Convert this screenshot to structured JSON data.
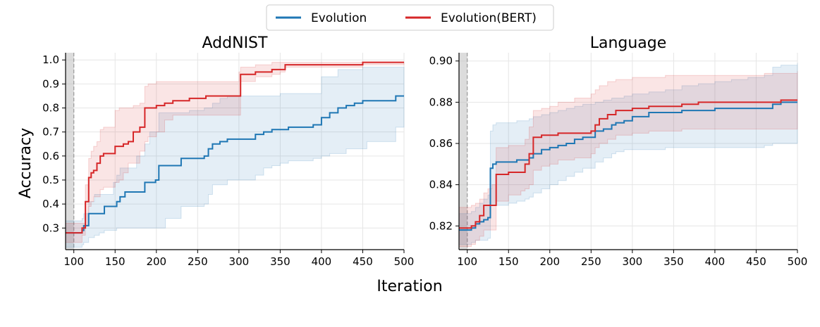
{
  "legend": [
    {
      "name": "Evolution",
      "color": "#1f77b4"
    },
    {
      "name": "Evolution(BERT)",
      "color": "#d62728"
    }
  ],
  "xlabel": "Iteration",
  "ylabel": "Accuracy",
  "chart_data": [
    {
      "type": "line",
      "title": "AddNIST",
      "xlim": [
        90,
        500
      ],
      "ylim": [
        0.21,
        1.03
      ],
      "xticks": [
        100,
        150,
        200,
        250,
        300,
        350,
        400,
        450,
        500
      ],
      "yticks": [
        0.3,
        0.4,
        0.5,
        0.6,
        0.7,
        0.8,
        0.9,
        1.0
      ],
      "ytick_labels": [
        "0.3",
        "0.4",
        "0.5",
        "0.6",
        "0.7",
        "0.8",
        "0.9",
        "1.0"
      ],
      "warmup_end": 100,
      "series": [
        {
          "name": "Evolution",
          "color": "#1f77b4",
          "x": [
            90,
            110,
            112,
            118,
            125,
            131,
            137,
            148,
            152,
            156,
            162,
            176,
            186,
            192,
            199,
            203,
            211,
            220,
            230,
            240,
            250,
            258,
            263,
            268,
            277,
            286,
            300,
            320,
            330,
            340,
            350,
            360,
            370,
            380,
            390,
            400,
            410,
            420,
            430,
            440,
            450,
            455,
            490,
            500
          ],
          "y": [
            0.28,
            0.29,
            0.31,
            0.36,
            0.36,
            0.36,
            0.39,
            0.39,
            0.41,
            0.43,
            0.45,
            0.45,
            0.49,
            0.49,
            0.5,
            0.56,
            0.56,
            0.56,
            0.59,
            0.59,
            0.59,
            0.6,
            0.63,
            0.65,
            0.66,
            0.67,
            0.67,
            0.69,
            0.7,
            0.71,
            0.71,
            0.72,
            0.72,
            0.72,
            0.73,
            0.76,
            0.78,
            0.8,
            0.81,
            0.82,
            0.83,
            0.83,
            0.85,
            0.85
          ],
          "lower": [
            0.22,
            0.23,
            0.24,
            0.26,
            0.27,
            0.28,
            0.29,
            0.29,
            0.3,
            0.3,
            0.3,
            0.3,
            0.3,
            0.3,
            0.3,
            0.3,
            0.34,
            0.34,
            0.39,
            0.39,
            0.39,
            0.4,
            0.44,
            0.48,
            0.48,
            0.5,
            0.5,
            0.52,
            0.55,
            0.56,
            0.57,
            0.58,
            0.58,
            0.58,
            0.59,
            0.6,
            0.61,
            0.61,
            0.63,
            0.63,
            0.63,
            0.66,
            0.72,
            0.72
          ],
          "upper": [
            0.33,
            0.34,
            0.36,
            0.41,
            0.44,
            0.44,
            0.44,
            0.49,
            0.52,
            0.55,
            0.55,
            0.6,
            0.65,
            0.7,
            0.7,
            0.78,
            0.78,
            0.78,
            0.78,
            0.79,
            0.79,
            0.8,
            0.8,
            0.82,
            0.84,
            0.85,
            0.85,
            0.85,
            0.85,
            0.85,
            0.86,
            0.86,
            0.86,
            0.86,
            0.86,
            0.93,
            0.93,
            0.96,
            0.96,
            0.96,
            0.97,
            0.97,
            0.97,
            0.97
          ]
        },
        {
          "name": "Evolution(BERT)",
          "color": "#d62728",
          "x": [
            90,
            110,
            114,
            118,
            121,
            124,
            128,
            132,
            136,
            141,
            150,
            155,
            160,
            166,
            172,
            180,
            186,
            190,
            200,
            210,
            220,
            240,
            260,
            300,
            302,
            320,
            340,
            350,
            356,
            380,
            400,
            450,
            500
          ],
          "y": [
            0.28,
            0.3,
            0.41,
            0.51,
            0.53,
            0.54,
            0.57,
            0.6,
            0.61,
            0.61,
            0.64,
            0.64,
            0.65,
            0.66,
            0.7,
            0.72,
            0.8,
            0.8,
            0.81,
            0.82,
            0.83,
            0.84,
            0.85,
            0.85,
            0.94,
            0.95,
            0.96,
            0.96,
            0.98,
            0.98,
            0.98,
            0.99,
            0.99
          ],
          "lower": [
            0.24,
            0.27,
            0.31,
            0.39,
            0.41,
            0.43,
            0.43,
            0.46,
            0.47,
            0.47,
            0.49,
            0.5,
            0.53,
            0.57,
            0.57,
            0.62,
            0.66,
            0.68,
            0.7,
            0.75,
            0.77,
            0.77,
            0.77,
            0.77,
            0.91,
            0.93,
            0.94,
            0.95,
            0.97,
            0.97,
            0.97,
            0.98,
            0.98
          ],
          "upper": [
            0.32,
            0.32,
            0.48,
            0.59,
            0.62,
            0.64,
            0.66,
            0.71,
            0.72,
            0.72,
            0.79,
            0.8,
            0.8,
            0.8,
            0.81,
            0.82,
            0.89,
            0.9,
            0.91,
            0.91,
            0.91,
            0.91,
            0.91,
            0.95,
            0.97,
            0.98,
            0.99,
            0.99,
            0.99,
            0.99,
            0.99,
            0.99,
            0.99
          ]
        }
      ]
    },
    {
      "type": "line",
      "title": "Language",
      "xlim": [
        90,
        500
      ],
      "ylim": [
        0.8085,
        0.904
      ],
      "xticks": [
        100,
        150,
        200,
        250,
        300,
        350,
        400,
        450,
        500
      ],
      "yticks": [
        0.82,
        0.84,
        0.86,
        0.88,
        0.9
      ],
      "ytick_labels": [
        "0.82",
        "0.84",
        "0.86",
        "0.88",
        "0.90"
      ],
      "warmup_end": 100,
      "series": [
        {
          "name": "Evolution",
          "color": "#1f77b4",
          "x": [
            90,
            100,
            105,
            110,
            115,
            120,
            125,
            128,
            131,
            135,
            140,
            150,
            160,
            170,
            175,
            180,
            190,
            200,
            210,
            220,
            230,
            240,
            255,
            265,
            275,
            280,
            290,
            300,
            320,
            340,
            360,
            380,
            400,
            420,
            440,
            460,
            470,
            480,
            500
          ],
          "y": [
            0.818,
            0.818,
            0.819,
            0.821,
            0.822,
            0.823,
            0.824,
            0.848,
            0.85,
            0.851,
            0.851,
            0.851,
            0.852,
            0.852,
            0.853,
            0.855,
            0.857,
            0.858,
            0.859,
            0.86,
            0.862,
            0.863,
            0.866,
            0.867,
            0.869,
            0.87,
            0.871,
            0.873,
            0.875,
            0.875,
            0.876,
            0.876,
            0.877,
            0.877,
            0.877,
            0.877,
            0.879,
            0.88,
            0.88
          ],
          "lower": [
            0.811,
            0.811,
            0.812,
            0.813,
            0.813,
            0.813,
            0.814,
            0.83,
            0.83,
            0.83,
            0.83,
            0.831,
            0.832,
            0.833,
            0.834,
            0.836,
            0.838,
            0.84,
            0.842,
            0.844,
            0.846,
            0.848,
            0.851,
            0.853,
            0.855,
            0.856,
            0.857,
            0.857,
            0.857,
            0.858,
            0.858,
            0.858,
            0.858,
            0.858,
            0.858,
            0.859,
            0.86,
            0.86,
            0.861
          ],
          "upper": [
            0.826,
            0.826,
            0.827,
            0.829,
            0.831,
            0.833,
            0.835,
            0.866,
            0.869,
            0.87,
            0.87,
            0.87,
            0.871,
            0.871,
            0.872,
            0.873,
            0.874,
            0.875,
            0.876,
            0.877,
            0.878,
            0.879,
            0.88,
            0.881,
            0.882,
            0.882,
            0.883,
            0.884,
            0.885,
            0.886,
            0.888,
            0.889,
            0.89,
            0.891,
            0.892,
            0.893,
            0.897,
            0.898,
            0.899
          ]
        },
        {
          "name": "Evolution(BERT)",
          "color": "#d62728",
          "x": [
            90,
            100,
            105,
            110,
            115,
            120,
            125,
            130,
            135,
            150,
            165,
            170,
            175,
            180,
            190,
            200,
            210,
            230,
            250,
            255,
            260,
            270,
            280,
            300,
            320,
            340,
            360,
            380,
            400,
            420,
            440,
            460,
            480,
            500
          ],
          "y": [
            0.819,
            0.819,
            0.82,
            0.822,
            0.825,
            0.83,
            0.83,
            0.83,
            0.845,
            0.846,
            0.846,
            0.85,
            0.855,
            0.863,
            0.864,
            0.864,
            0.865,
            0.865,
            0.866,
            0.869,
            0.872,
            0.874,
            0.876,
            0.877,
            0.878,
            0.878,
            0.879,
            0.88,
            0.88,
            0.88,
            0.88,
            0.88,
            0.881,
            0.881
          ],
          "lower": [
            0.81,
            0.81,
            0.811,
            0.813,
            0.815,
            0.818,
            0.818,
            0.818,
            0.832,
            0.835,
            0.837,
            0.838,
            0.84,
            0.847,
            0.849,
            0.85,
            0.852,
            0.853,
            0.855,
            0.858,
            0.86,
            0.862,
            0.864,
            0.865,
            0.866,
            0.866,
            0.867,
            0.867,
            0.867,
            0.867,
            0.867,
            0.867,
            0.867,
            0.868
          ],
          "upper": [
            0.829,
            0.829,
            0.83,
            0.831,
            0.833,
            0.836,
            0.838,
            0.84,
            0.858,
            0.859,
            0.859,
            0.862,
            0.868,
            0.876,
            0.877,
            0.878,
            0.88,
            0.882,
            0.884,
            0.886,
            0.888,
            0.89,
            0.891,
            0.892,
            0.892,
            0.893,
            0.893,
            0.893,
            0.893,
            0.893,
            0.893,
            0.894,
            0.894,
            0.895
          ]
        }
      ]
    }
  ]
}
